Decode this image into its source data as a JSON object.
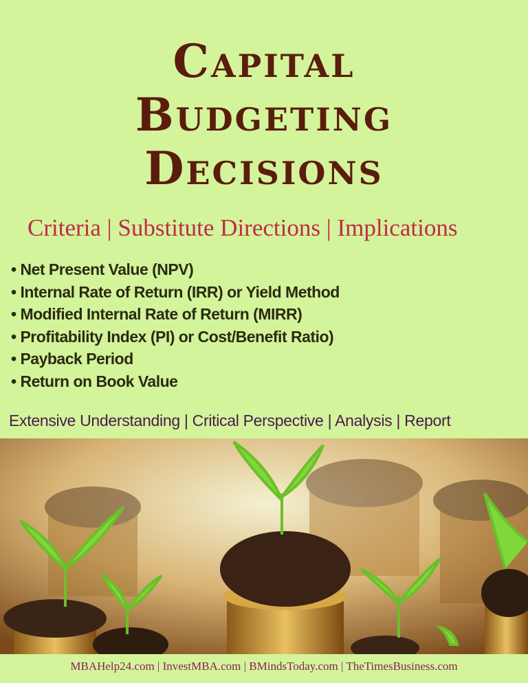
{
  "title": {
    "line1": "Capital",
    "line2": "Budgeting",
    "line3": "Decisions"
  },
  "subtitle": "Criteria | Substitute Directions | Implications",
  "bullets": [
    "Net Present Value (NPV)",
    "Internal Rate of Return (IRR) or Yield Method",
    "Modified Internal Rate of Return (MIRR)",
    "Profitability Index (PI) or Cost/Benefit Ratio)",
    "Payback Period",
    "Return on Book Value"
  ],
  "tagline": "Extensive Understanding | Critical Perspective | Analysis | Report",
  "footer": "MBAHelp24.com | InvestMBA.com | BMindsToday.com | TheTimesBusiness.com",
  "colors": {
    "background": "#d3f49b",
    "title": "#5a1c0c",
    "subtitle": "#c2294a",
    "tagline": "#4a1a4e",
    "footer": "#8c2255"
  }
}
